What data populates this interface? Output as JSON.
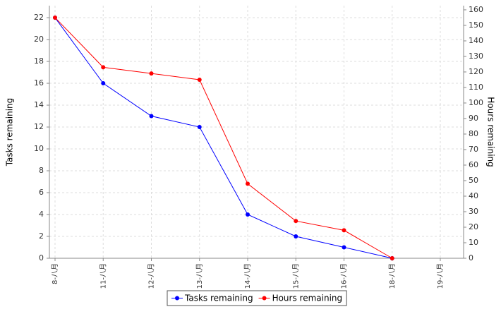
{
  "chart_data": {
    "type": "line",
    "categories": [
      "8-八月",
      "11-八月",
      "12-八月",
      "13-八月",
      "14-八月",
      "15-八月",
      "16-八月",
      "18-八月",
      "19-八月"
    ],
    "series": [
      {
        "name": "Tasks remaining",
        "color": "#0000ff",
        "values": [
          22,
          16,
          13,
          12,
          4,
          2,
          1,
          0,
          null
        ]
      },
      {
        "name": "Hours remaining",
        "color": "#ff0000",
        "axis": "y2",
        "values": [
          155,
          123,
          119,
          115,
          48,
          24,
          18,
          0,
          null
        ]
      }
    ],
    "ylabel": "Tasks remaining",
    "y2label": "Hours remaining",
    "ylim": [
      0,
      23.1
    ],
    "yticks": [
      0,
      2,
      4,
      6,
      8,
      10,
      12,
      14,
      16,
      18,
      20,
      22
    ],
    "y2lim": [
      0,
      162.7
    ],
    "y2ticks": [
      0,
      10,
      20,
      30,
      40,
      50,
      60,
      70,
      80,
      90,
      100,
      110,
      120,
      130,
      140,
      150,
      160
    ],
    "grid": true,
    "legend": "bottom"
  }
}
